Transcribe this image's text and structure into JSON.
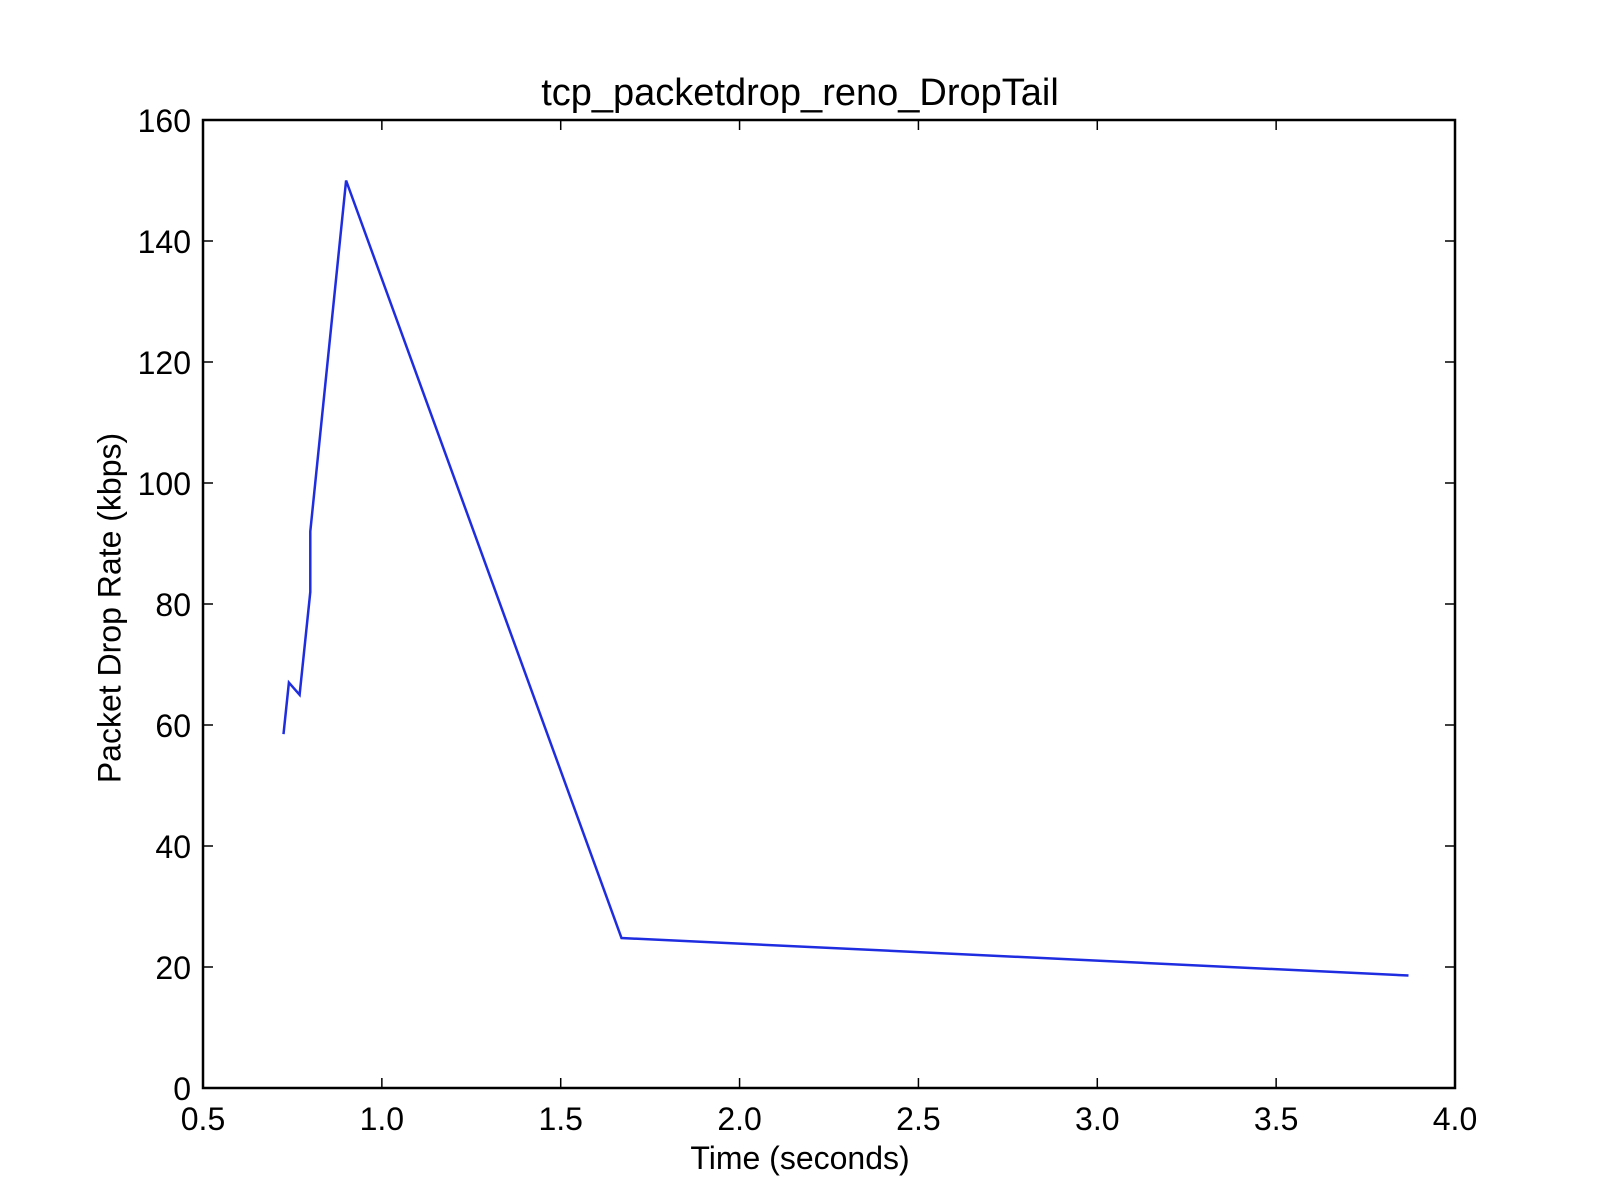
{
  "chart_data": {
    "type": "line",
    "title": "tcp_packetdrop_reno_DropTail",
    "xlabel": "Time (seconds)",
    "ylabel": "Packet Drop Rate (kbps)",
    "xlim": [
      0.5,
      4.0
    ],
    "ylim": [
      0,
      160
    ],
    "xticks": [
      0.5,
      1.0,
      1.5,
      2.0,
      2.5,
      3.0,
      3.5,
      4.0
    ],
    "xtick_labels": [
      "0.5",
      "1.0",
      "1.5",
      "2.0",
      "2.5",
      "3.0",
      "3.5",
      "4.0"
    ],
    "yticks": [
      0,
      20,
      40,
      60,
      80,
      100,
      120,
      140,
      160
    ],
    "ytick_labels": [
      "0",
      "20",
      "40",
      "60",
      "80",
      "100",
      "120",
      "140",
      "160"
    ],
    "grid": false,
    "series": [
      {
        "color": "#1f2de0",
        "x": [
          0.725,
          0.74,
          0.77,
          0.8,
          0.8,
          0.9,
          1.67,
          3.87
        ],
        "y": [
          58.5,
          67.0,
          65.0,
          82.0,
          92.0,
          150.0,
          24.8,
          18.6
        ]
      }
    ]
  }
}
